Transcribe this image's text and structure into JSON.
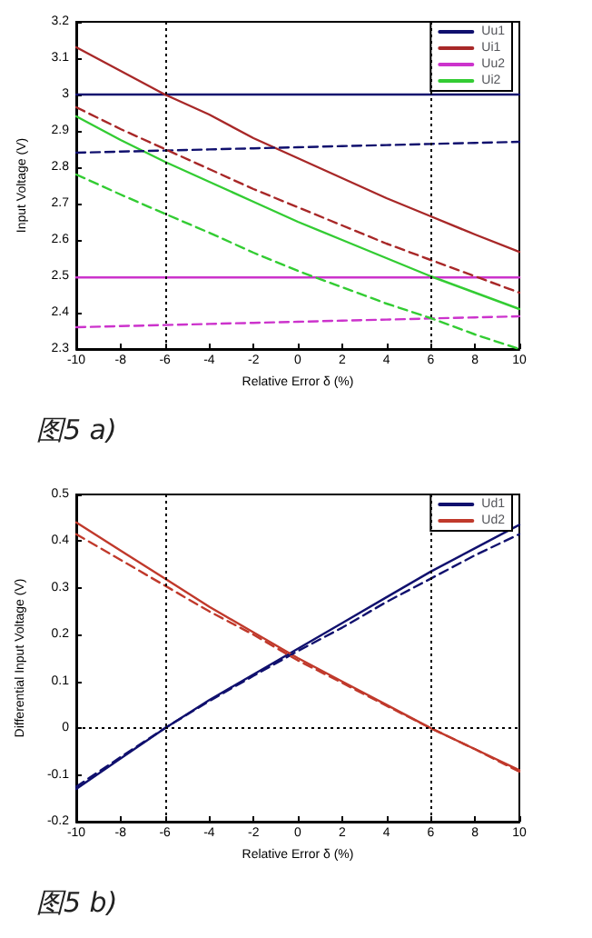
{
  "chart_data": [
    {
      "type": "line",
      "xlabel": "Relative Error δ (%)",
      "ylabel": "Input Voltage (V)",
      "annotations": [
        "图5 a)"
      ],
      "x": [
        -10,
        -8,
        -6,
        -4,
        -2,
        0,
        2,
        4,
        6,
        8,
        10
      ],
      "xlim": [
        -10,
        10
      ],
      "xticks": [
        -10,
        -8,
        -6,
        -4,
        -2,
        0,
        2,
        4,
        6,
        8,
        10
      ],
      "ylim": [
        2.3,
        3.2
      ],
      "yticks": [
        2.3,
        2.4,
        2.5,
        2.6,
        2.7,
        2.8,
        2.9,
        3,
        3.1,
        3.2
      ],
      "grid": false,
      "legend": "top right",
      "marker": "none",
      "ref_lines": [
        {
          "axis": "x",
          "value": -6,
          "color": "#000000",
          "line_style": "dotted"
        },
        {
          "axis": "x",
          "value": 6,
          "color": "#000000",
          "line_style": "dotted"
        }
      ],
      "series": [
        {
          "name": "Uu1",
          "color": "#10106e",
          "line_style": "solid",
          "values": [
            3.0,
            3.0,
            3.0,
            3.0,
            3.0,
            3.0,
            3.0,
            3.0,
            3.0,
            3.0,
            3.0
          ]
        },
        {
          "name": "Ui1",
          "color": "#a82828",
          "line_style": "solid",
          "values": [
            3.13,
            3.065,
            3.0,
            2.945,
            2.88,
            2.825,
            2.77,
            2.715,
            2.665,
            2.615,
            2.567
          ]
        },
        {
          "name": "Uu2",
          "color": "#cc33cc",
          "line_style": "solid",
          "values": [
            2.497,
            2.497,
            2.497,
            2.497,
            2.497,
            2.497,
            2.497,
            2.497,
            2.497,
            2.497,
            2.497
          ]
        },
        {
          "name": "Ui2",
          "color": "#33cc33",
          "line_style": "solid",
          "values": [
            2.94,
            2.875,
            2.815,
            2.76,
            2.705,
            2.65,
            2.6,
            2.55,
            2.5,
            2.455,
            2.41
          ]
        },
        {
          "color": "#10106e",
          "line_style": "dashed",
          "values": [
            2.84,
            2.843,
            2.846,
            2.849,
            2.852,
            2.855,
            2.858,
            2.861,
            2.864,
            2.867,
            2.87
          ]
        },
        {
          "color": "#a82828",
          "line_style": "dashed",
          "values": [
            2.965,
            2.905,
            2.85,
            2.795,
            2.74,
            2.69,
            2.64,
            2.59,
            2.545,
            2.5,
            2.455
          ]
        },
        {
          "color": "#cc33cc",
          "line_style": "dashed",
          "values": [
            2.36,
            2.363,
            2.366,
            2.369,
            2.372,
            2.375,
            2.378,
            2.381,
            2.384,
            2.387,
            2.39
          ]
        },
        {
          "color": "#33cc33",
          "line_style": "dashed",
          "values": [
            2.78,
            2.725,
            2.672,
            2.62,
            2.565,
            2.515,
            2.47,
            2.425,
            2.385,
            2.34,
            2.3
          ]
        }
      ]
    },
    {
      "type": "line",
      "xlabel": "Relative Error δ (%)",
      "ylabel": "Differential Input Voltage (V)",
      "annotations": [
        "图5 b)"
      ],
      "x": [
        -10,
        -8,
        -6,
        -4,
        -2,
        0,
        2,
        4,
        6,
        8,
        10
      ],
      "xlim": [
        -10,
        10
      ],
      "xticks": [
        -10,
        -8,
        -6,
        -4,
        -2,
        0,
        2,
        4,
        6,
        8,
        10
      ],
      "ylim": [
        -0.2,
        0.5
      ],
      "yticks": [
        -0.2,
        -0.1,
        0,
        0.1,
        0.2,
        0.3,
        0.4,
        0.5
      ],
      "grid": false,
      "legend": "top right",
      "marker": "none",
      "ref_lines": [
        {
          "axis": "x",
          "value": -6,
          "color": "#000000",
          "line_style": "dotted"
        },
        {
          "axis": "x",
          "value": 6,
          "color": "#000000",
          "line_style": "dotted"
        },
        {
          "axis": "y",
          "value": 0,
          "color": "#000000",
          "line_style": "dotted"
        }
      ],
      "series": [
        {
          "name": "Ud1",
          "color": "#10106e",
          "line_style": "solid",
          "values": [
            -0.13,
            -0.065,
            0.0,
            0.06,
            0.115,
            0.17,
            0.225,
            0.28,
            0.335,
            0.385,
            0.435
          ]
        },
        {
          "name": "Ud2",
          "color": "#c0392b",
          "line_style": "solid",
          "values": [
            0.44,
            0.38,
            0.32,
            0.26,
            0.205,
            0.15,
            0.1,
            0.05,
            0.0,
            -0.045,
            -0.09
          ]
        },
        {
          "color": "#10106e",
          "line_style": "dashed",
          "values": [
            -0.125,
            -0.062,
            0.0,
            0.058,
            0.112,
            0.165,
            0.215,
            0.27,
            0.32,
            0.37,
            0.415
          ]
        },
        {
          "color": "#c0392b",
          "line_style": "dashed",
          "values": [
            0.415,
            0.36,
            0.305,
            0.25,
            0.2,
            0.145,
            0.097,
            0.048,
            0.0,
            -0.045,
            -0.093
          ]
        }
      ]
    }
  ]
}
